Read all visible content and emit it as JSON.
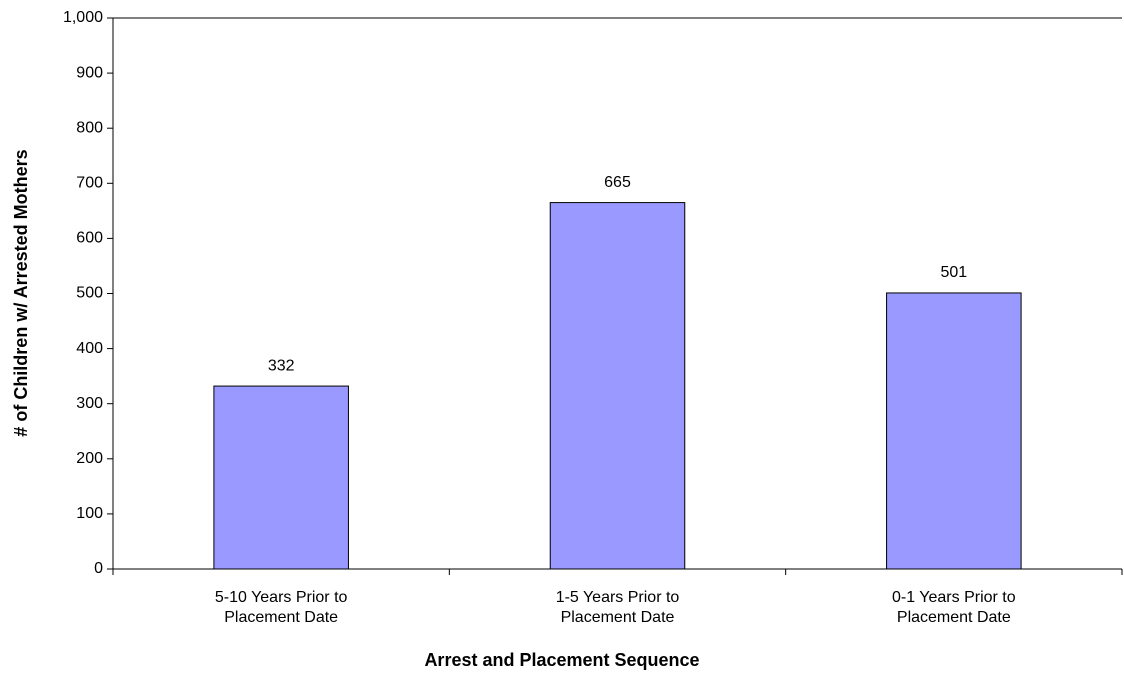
{
  "chart_data": {
    "type": "bar",
    "x_label": "Arrest and Placement Sequence",
    "y_label": "# of Children w/ Arrested Mothers",
    "categories": [
      "5-10 Years Prior to Placement Date",
      "1-5 Years Prior to Placement Date",
      "0-1 Years Prior to Placement Date"
    ],
    "values": [
      332,
      665,
      501
    ],
    "color": "#9999ff",
    "ylim": [
      0,
      1000
    ],
    "yticks": [
      0,
      100,
      200,
      300,
      400,
      500,
      600,
      700,
      800,
      900,
      {
        "value": 1000,
        "label": "1,000"
      }
    ],
    "grid": false
  }
}
